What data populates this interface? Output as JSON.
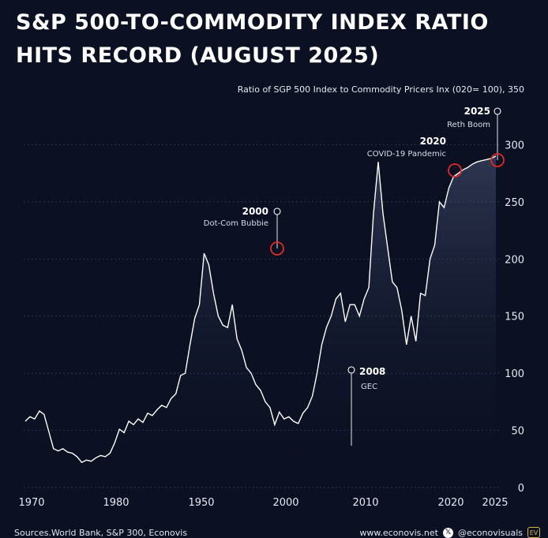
{
  "title_line1": "S&P 500-TO-COMMODITY INDEX RATIO",
  "title_line2": "HITS RECORD (AUGUST 2025)",
  "footer": {
    "source": "Sources.World Bank, S&P 300, Econovis",
    "site": "www.econovis.net",
    "x_glyph": "𝕏",
    "handle": "@econovisuals",
    "brand_badge": "EV"
  },
  "chart_data": {
    "type": "line",
    "title": "Ratio of SGP 500 Index to Commodity Pricers Inx (020= 100), 350",
    "xlabel": "",
    "ylabel": "",
    "ylim": [
      0,
      330
    ],
    "yticks": [
      0,
      50,
      100,
      150,
      200,
      250,
      300
    ],
    "xtick_labels": [
      "1970",
      "1980",
      "1950",
      "2000",
      "2010",
      "2020",
      "2025"
    ],
    "grid": true,
    "series": [
      {
        "x": [
          0,
          1,
          2,
          3,
          4,
          5,
          6,
          7,
          8,
          9,
          10,
          11,
          12,
          13,
          14,
          15,
          16,
          17,
          18,
          19,
          20,
          21,
          22,
          23,
          24,
          25,
          26,
          27,
          28,
          29,
          30,
          31,
          32,
          33,
          34,
          35,
          36,
          37,
          38,
          39,
          40,
          41,
          42,
          43,
          44,
          45,
          46,
          47,
          48,
          49,
          50,
          51,
          52,
          53,
          54,
          55,
          56,
          57,
          58,
          59,
          60,
          61,
          62,
          63,
          64,
          65,
          66,
          67,
          68,
          69,
          70,
          71,
          72,
          73,
          74,
          75,
          76,
          77,
          78,
          79,
          80,
          81,
          82,
          83,
          84,
          85,
          86,
          87,
          88,
          89,
          90,
          91,
          92,
          93,
          94,
          95,
          96,
          97,
          98,
          99,
          100
        ],
        "values": [
          58,
          62,
          60,
          67,
          64,
          49,
          34,
          32,
          34,
          31,
          30,
          27,
          22,
          24,
          23,
          26,
          28,
          27,
          30,
          39,
          51,
          48,
          58,
          55,
          60,
          57,
          65,
          63,
          68,
          72,
          70,
          78,
          82,
          98,
          100,
          125,
          148,
          160,
          205,
          195,
          170,
          150,
          142,
          140,
          160,
          130,
          120,
          105,
          100,
          90,
          85,
          75,
          70,
          55,
          66,
          60,
          62,
          58,
          56,
          65,
          70,
          80,
          100,
          125,
          140,
          150,
          165,
          170,
          145,
          160,
          160,
          150,
          165,
          175,
          240,
          285,
          240,
          210,
          180,
          175,
          155,
          125,
          150,
          128,
          170,
          168,
          200,
          212,
          250,
          245,
          262,
          272,
          275,
          278,
          280,
          283,
          285,
          286,
          287,
          288,
          290
        ],
        "x_domain": [
          0,
          100
        ]
      }
    ],
    "annotations": [
      {
        "year": "2000",
        "label": "Dot-Com Bubbie",
        "peak": 205,
        "circle": true
      },
      {
        "year": "2008",
        "label": "GEC",
        "peak": 55,
        "circle": false
      },
      {
        "year": "2020",
        "label": "COVID-19 Pandemic",
        "peak": 285,
        "circle": true
      },
      {
        "year": "2025",
        "label": "Reth Boom",
        "peak": 290,
        "circle": true
      }
    ]
  },
  "colors": {
    "background": "#0b1022",
    "line": "#ffffff",
    "highlight": "#e02a2a",
    "grid": "#3a4260"
  }
}
